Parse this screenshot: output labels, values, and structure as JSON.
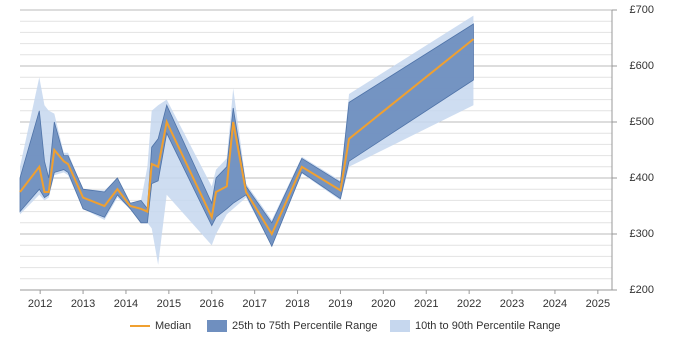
{
  "chart_data": {
    "type": "line",
    "x": [
      2011.53,
      2011.98,
      2012.1,
      2012.2,
      2012.33,
      2012.55,
      2012.65,
      2013.0,
      2013.5,
      2013.8,
      2014.1,
      2014.35,
      2014.5,
      2014.6,
      2014.75,
      2014.95,
      2016.0,
      2016.1,
      2016.35,
      2016.5,
      2016.8,
      2017.4,
      2018.1,
      2019.0,
      2019.2,
      2022.1
    ],
    "series": [
      {
        "name": "10th to 90th Percentile Range",
        "color": "#c6d7ee",
        "low": [
          335,
          370,
          360,
          365,
          405,
          410,
          405,
          345,
          325,
          365,
          345,
          320,
          320,
          310,
          245,
          370,
          280,
          300,
          335,
          345,
          365,
          278,
          408,
          360,
          420,
          530
        ],
        "high": [
          420,
          580,
          530,
          520,
          515,
          445,
          445,
          380,
          378,
          400,
          355,
          360,
          420,
          520,
          530,
          540,
          385,
          415,
          435,
          560,
          390,
          325,
          438,
          395,
          550,
          690
        ]
      },
      {
        "name": "25th to 75th Percentile Range",
        "color": "#6f8fbf",
        "low": [
          340,
          380,
          365,
          370,
          410,
          415,
          410,
          345,
          330,
          370,
          345,
          320,
          320,
          390,
          395,
          480,
          315,
          330,
          345,
          355,
          370,
          278,
          410,
          363,
          430,
          575
        ],
        "high": [
          400,
          520,
          430,
          400,
          500,
          440,
          440,
          380,
          375,
          400,
          355,
          360,
          345,
          455,
          470,
          530,
          355,
          400,
          420,
          525,
          385,
          320,
          435,
          392,
          535,
          675
        ]
      },
      {
        "name": "Median",
        "color": "#f0a030",
        "values": [
          375,
          420,
          375,
          375,
          450,
          430,
          425,
          365,
          350,
          380,
          350,
          345,
          340,
          425,
          420,
          500,
          330,
          375,
          385,
          500,
          375,
          300,
          420,
          378,
          470,
          648
        ]
      }
    ],
    "xlim": [
      2011.53,
      2025.33
    ],
    "xticks": [
      2012,
      2013,
      2014,
      2015,
      2016,
      2017,
      2018,
      2019,
      2020,
      2021,
      2022,
      2023,
      2024,
      2025
    ],
    "ylim": [
      200,
      700
    ],
    "yticks": [
      {
        "value": 200,
        "label": "£200"
      },
      {
        "value": 300,
        "label": "£300"
      },
      {
        "value": 400,
        "label": "£400"
      },
      {
        "value": 500,
        "label": "£500"
      },
      {
        "value": 600,
        "label": "£600"
      },
      {
        "value": 700,
        "label": "£700"
      }
    ],
    "minor_yticks": [
      220,
      240,
      260,
      280,
      320,
      340,
      360,
      380,
      420,
      440,
      460,
      480,
      520,
      540,
      560,
      580,
      620,
      640,
      660,
      680
    ],
    "grid": true
  }
}
